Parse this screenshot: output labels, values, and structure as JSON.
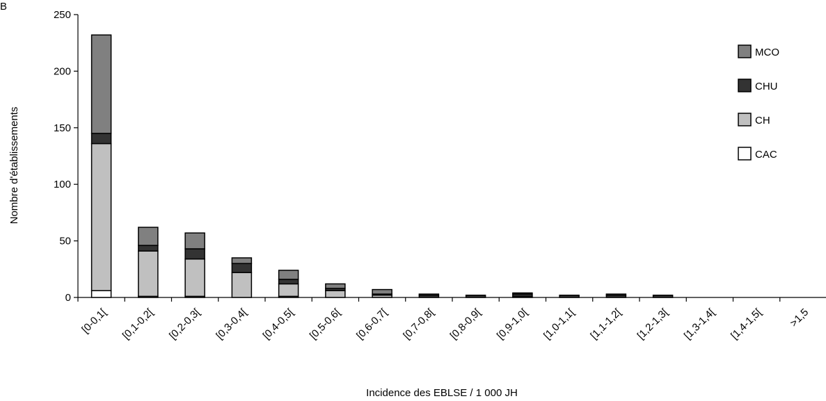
{
  "panel_label": "B",
  "chart_data": {
    "type": "bar",
    "stacked": true,
    "xlabel": "Incidence des EBLSE / 1 000 JH",
    "ylabel": "Nombre d'établissements",
    "ylim": [
      0,
      250
    ],
    "yticks": [
      0,
      50,
      100,
      150,
      200,
      250
    ],
    "grid": false,
    "legend_position": "right",
    "categories": [
      "[0-0,1[",
      "[0,1-0,2[",
      "[0,2-0,3[",
      "[0,3-0,4[",
      "[0,4-0,5[",
      "[0,5-0,6[",
      "[0,6-0,7[",
      "[0,7-0,8[",
      "[0,8-0,9[",
      "[0,9-1,0[",
      "[1,0-1,1[",
      "[1,1-1,2[",
      "[1,2-1,3[",
      "[1,3-1,4[",
      "[1,4-1,5[",
      ">1,5"
    ],
    "series": [
      {
        "name": "CAC",
        "color": "#ffffff",
        "values": [
          6,
          1,
          1,
          0,
          1,
          0,
          0,
          0,
          0,
          0,
          0,
          0,
          0,
          0,
          0,
          0
        ]
      },
      {
        "name": "CH",
        "color": "#c0c0c0",
        "values": [
          130,
          40,
          33,
          22,
          11,
          6,
          2,
          0,
          0,
          1,
          0,
          0,
          0,
          0,
          0,
          0
        ]
      },
      {
        "name": "CHU",
        "color": "#333333",
        "values": [
          9,
          5,
          9,
          8,
          4,
          2,
          1,
          2,
          2,
          2,
          2,
          2,
          2,
          0,
          0,
          0
        ]
      },
      {
        "name": "MCO",
        "color": "#808080",
        "values": [
          87,
          16,
          14,
          5,
          8,
          4,
          4,
          1,
          0,
          1,
          0,
          1,
          0,
          0,
          0,
          0
        ]
      }
    ],
    "legend_order": [
      "MCO",
      "CHU",
      "CH",
      "CAC"
    ]
  }
}
